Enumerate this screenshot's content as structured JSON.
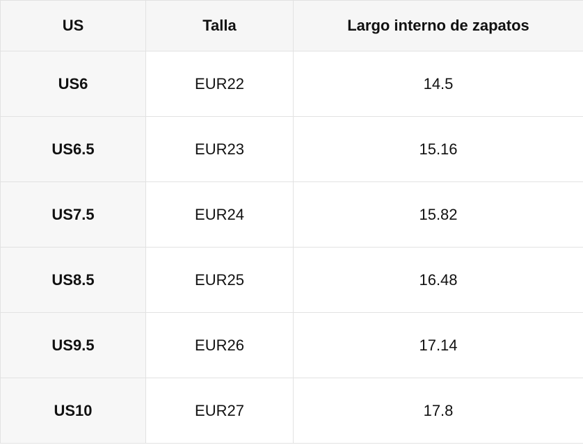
{
  "table": {
    "header": [
      "US",
      "Talla",
      "Largo interno de zapatos"
    ],
    "rows": [
      [
        "US6",
        "EUR22",
        "14.5"
      ],
      [
        "US6.5",
        "EUR23",
        "15.16"
      ],
      [
        "US7.5",
        "EUR24",
        "15.82"
      ],
      [
        "US8.5",
        "EUR25",
        "16.48"
      ],
      [
        "US9.5",
        "EUR26",
        "17.14"
      ],
      [
        "US10",
        "EUR27",
        "17.8"
      ]
    ]
  }
}
